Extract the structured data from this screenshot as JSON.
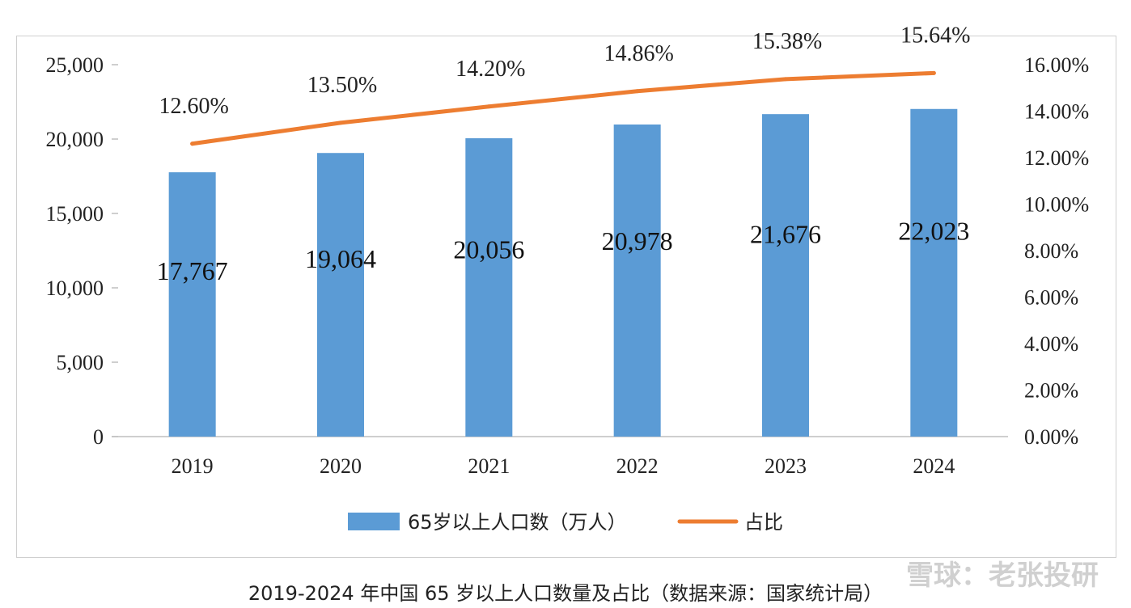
{
  "chart_data": {
    "type": "bar",
    "categories": [
      "2019",
      "2020",
      "2021",
      "2022",
      "2023",
      "2024"
    ],
    "series": [
      {
        "name": "65岁以上人口数（万人）",
        "type": "bar",
        "axis": "left",
        "values": [
          17767,
          19064,
          20056,
          20978,
          21676,
          22023
        ],
        "labels": [
          "17,767",
          "19,064",
          "20,056",
          "20,978",
          "21,676",
          "22,023"
        ],
        "color": "#5b9bd5"
      },
      {
        "name": "占比",
        "type": "line",
        "axis": "right",
        "values": [
          12.6,
          13.5,
          14.2,
          14.86,
          15.38,
          15.64
        ],
        "labels": [
          "12.60%",
          "13.50%",
          "14.20%",
          "14.86%",
          "15.38%",
          "15.64%"
        ],
        "color": "#ed7d31"
      }
    ],
    "y_left": {
      "ylim": [
        0,
        25000
      ],
      "ticks": [
        "0",
        "5,000",
        "10,000",
        "15,000",
        "20,000",
        "25,000"
      ]
    },
    "y_right": {
      "ylim": [
        0,
        16
      ],
      "ticks": [
        "0.00%",
        "2.00%",
        "4.00%",
        "6.00%",
        "8.00%",
        "10.00%",
        "12.00%",
        "14.00%",
        "16.00%"
      ]
    },
    "legend": [
      "65岁以上人口数（万人）",
      "占比"
    ],
    "legend_position": "bottom-center",
    "title": "",
    "caption": "2019-2024 年中国 65 岁以上人口数量及占比（数据来源：国家统计局）"
  },
  "watermark": "雪球：老张投研"
}
